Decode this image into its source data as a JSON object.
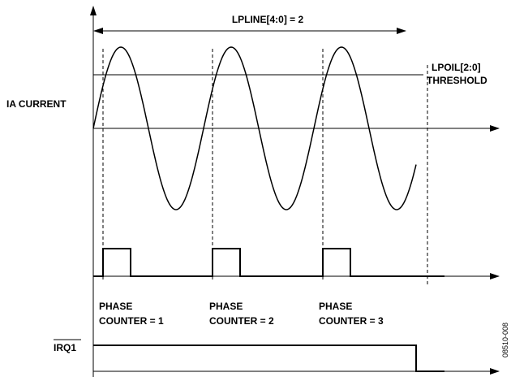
{
  "labels": {
    "period": "LPLINE[4:0] = 2",
    "threshold_reg": "LPOIL[2:0]",
    "threshold": "THRESHOLD",
    "signal": "IA CURRENT",
    "irq": "IRQ1",
    "figure_id": "08510-008"
  },
  "counters": [
    {
      "line1": "PHASE",
      "line2": "COUNTER = 1"
    },
    {
      "line1": "PHASE",
      "line2": "COUNTER = 2"
    },
    {
      "line1": "PHASE",
      "line2": "COUNTER = 3"
    }
  ]
}
